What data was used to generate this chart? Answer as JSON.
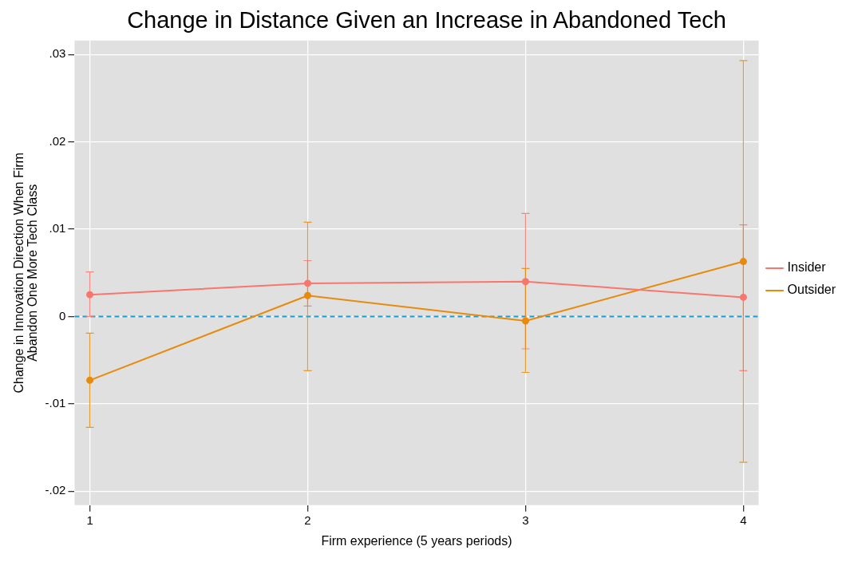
{
  "chart_data": {
    "type": "line",
    "title": "Change in Distance Given an Increase in Abandoned Tech",
    "xlabel": "Firm experience (5 years periods)",
    "ylabel": "Change in Innovation Direction When Firm\nAbandon One More Tech Class",
    "x": [
      1,
      2,
      3,
      4
    ],
    "series": [
      {
        "name": "Insider",
        "color": "#f8766d",
        "values": [
          0.0025,
          0.0038,
          0.004,
          0.0022
        ],
        "errors": [
          [
            0.0,
            0.0051
          ],
          [
            0.0012,
            0.0064
          ],
          [
            -0.0037,
            0.0118
          ],
          [
            -0.0062,
            0.0105
          ]
        ]
      },
      {
        "name": "Outsider",
        "color": "#e88a0c",
        "values": [
          -0.0073,
          0.0024,
          -0.0005,
          0.0063
        ],
        "errors": [
          [
            -0.0127,
            -0.0019
          ],
          [
            -0.0062,
            0.0108
          ],
          [
            -0.0064,
            0.0055
          ],
          [
            -0.0167,
            0.0293
          ]
        ]
      }
    ],
    "xlim": [
      0.93,
      4.07
    ],
    "xticks": [
      1,
      2,
      3,
      4
    ],
    "ylim": [
      -0.0216,
      0.0316
    ],
    "yticks": [
      {
        "value": -0.02,
        "label": "-.02"
      },
      {
        "value": -0.01,
        "label": "-.01"
      },
      {
        "value": 0,
        "label": "0"
      },
      {
        "value": 0.01,
        "label": ".01"
      },
      {
        "value": 0.02,
        "label": ".02"
      },
      {
        "value": 0.03,
        "label": ".03"
      }
    ],
    "ref_lines": [
      {
        "axis": "y",
        "value": 0,
        "color": "#1a9bd0",
        "line_style": "dashed"
      }
    ],
    "grid": true,
    "legend": "right",
    "marker": "circle",
    "line_style": "solid"
  }
}
